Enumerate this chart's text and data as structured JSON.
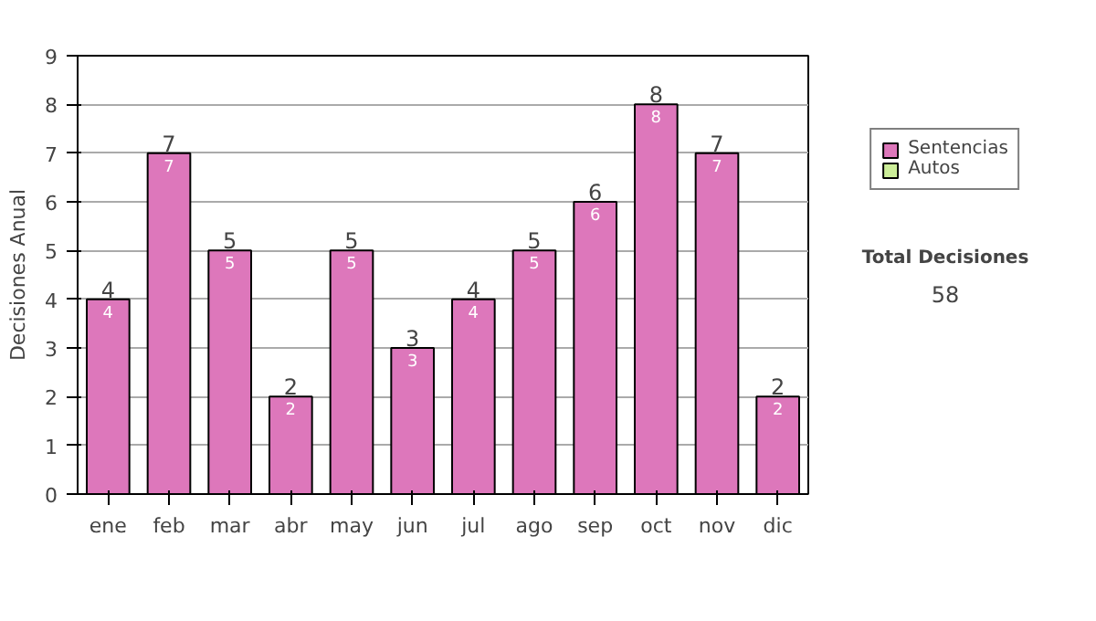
{
  "chart_data": {
    "type": "bar",
    "stacked": true,
    "ylabel": "Decisiones Anual",
    "categories": [
      "ene",
      "feb",
      "mar",
      "abr",
      "may",
      "jun",
      "jul",
      "ago",
      "sep",
      "oct",
      "nov",
      "dic"
    ],
    "series": [
      {
        "name": "Sentencias",
        "color": "#dd77bb",
        "values": [
          4,
          7,
          5,
          2,
          5,
          3,
          4,
          5,
          6,
          8,
          7,
          2
        ],
        "value_labels": [
          "4",
          "7",
          "5",
          "2",
          "5",
          "3",
          "4",
          "5",
          "6",
          "8",
          "7",
          "2"
        ]
      },
      {
        "name": "Autos",
        "color": "#ccee99",
        "values": [
          0,
          0,
          0,
          0,
          0,
          0,
          0,
          0,
          0,
          0,
          0,
          0
        ]
      }
    ],
    "totals": [
      "4",
      "7",
      "5",
      "2",
      "5",
      "3",
      "4",
      "5",
      "6",
      "8",
      "7",
      "2"
    ],
    "ylim": [
      0,
      9
    ],
    "yticks": [
      0,
      1,
      2,
      3,
      4,
      5,
      6,
      7,
      8,
      9
    ],
    "grid": "y",
    "legend": "right",
    "annotations": [
      "Total Decisiones",
      "58"
    ]
  }
}
